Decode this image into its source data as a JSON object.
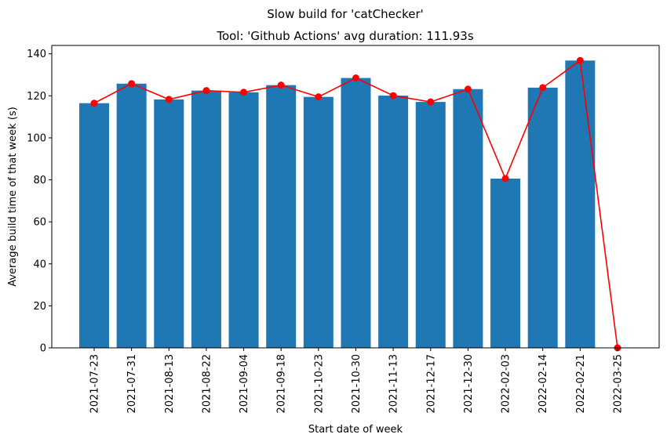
{
  "chart_data": {
    "type": "bar",
    "title": "Slow build for 'catChecker'",
    "subtitle": "Tool: 'Github Actions' avg duration: 111.93s",
    "xlabel": "Start date of week",
    "ylabel": "Average build time of that week (s)",
    "ylim": [
      0,
      144
    ],
    "yticks": [
      0,
      20,
      40,
      60,
      80,
      100,
      120,
      140
    ],
    "grid": false,
    "categories": [
      "2021-07-23",
      "2021-07-31",
      "2021-08-13",
      "2021-08-22",
      "2021-09-04",
      "2021-09-18",
      "2021-10-23",
      "2021-10-30",
      "2021-11-13",
      "2021-12-17",
      "2021-12-30",
      "2022-02-03",
      "2022-02-14",
      "2022-02-21",
      "2022-03-25"
    ],
    "series": [
      {
        "mark": "bar",
        "color": "#1f77b4",
        "values": [
          116.5,
          125.8,
          118.3,
          122.5,
          121.7,
          125.1,
          119.5,
          128.5,
          120.1,
          117.1,
          123.2,
          80.6,
          123.9,
          136.8,
          0
        ]
      },
      {
        "mark": "line",
        "marker": "circle",
        "color": "#ff0000",
        "values": [
          116.5,
          125.8,
          118.3,
          122.5,
          121.7,
          125.1,
          119.5,
          128.5,
          120.1,
          117.1,
          123.2,
          80.6,
          123.9,
          136.8,
          0
        ]
      }
    ]
  }
}
